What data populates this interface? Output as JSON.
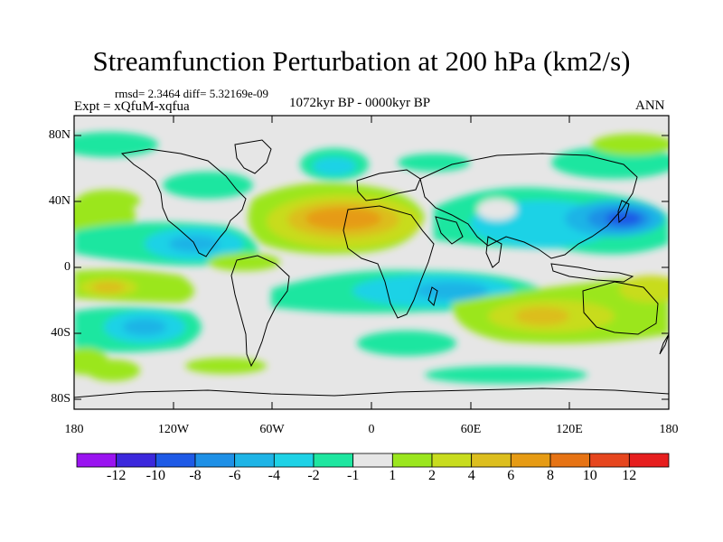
{
  "title": "Streamfunction Perturbation at 200 hPa (km2/s)",
  "stats": "rmsd= 2.3464 diff= 5.32169e-09",
  "experiment": "Expt = xQfuM-xqfua",
  "period": "1072kyr BP - 0000kyr BP",
  "season": "ANN",
  "map": {
    "lat_labels": [
      "80N",
      "40N",
      "0",
      "40S",
      "80S"
    ],
    "lon_labels": [
      "180",
      "120W",
      "60W",
      "0",
      "60E",
      "120E",
      "180"
    ]
  },
  "colorbar": {
    "labels": [
      "-12",
      "-10",
      "-8",
      "-6",
      "-4",
      "-2",
      "-1",
      "1",
      "2",
      "4",
      "6",
      "8",
      "10",
      "12"
    ],
    "colors": [
      "#9a14f0",
      "#3c28dc",
      "#1e5ae6",
      "#1e90e6",
      "#1eb4e6",
      "#1ed2e6",
      "#1ee6a0",
      "#e6e6e6",
      "#9be61e",
      "#c8dc1e",
      "#dcbe1e",
      "#e69b14",
      "#e67314",
      "#e6461e",
      "#e61e1e"
    ]
  }
}
